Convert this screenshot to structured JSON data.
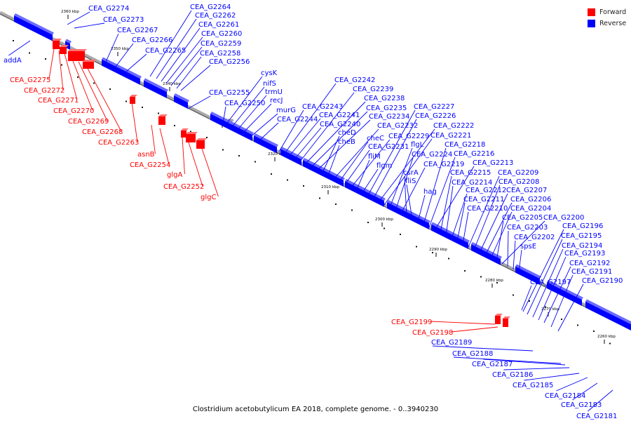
{
  "title": "Clostridium acetobutylicum EA 2018, complete genome. - 0..3940230",
  "legend": [
    {
      "label": "Forward",
      "color": "#ff0000"
    },
    {
      "label": "Reverse",
      "color": "#0000ff"
    }
  ],
  "colors": {
    "forward": "#ff0000",
    "reverse": "#0000ff",
    "backbone": "#a9a9a9"
  },
  "ticks": [
    "2360 kbp",
    "2350 kbp",
    "2340 kbp",
    "2330 kbp",
    "2320 kbp",
    "2310 kbp",
    "2300 kbp",
    "2290 kbp",
    "2280 kbp",
    "2270 kbp",
    "2260 kbp"
  ],
  "genes": [
    {
      "label": "CEA_G2274",
      "strand": "reverse"
    },
    {
      "label": "CEA_G2273",
      "strand": "reverse"
    },
    {
      "label": "CEA_G2267",
      "strand": "reverse"
    },
    {
      "label": "CEA_G2266",
      "strand": "reverse"
    },
    {
      "label": "CEA_G2265",
      "strand": "reverse"
    },
    {
      "label": "CEA_G2264",
      "strand": "reverse"
    },
    {
      "label": "CEA_G2262",
      "strand": "reverse"
    },
    {
      "label": "CEA_G2261",
      "strand": "reverse"
    },
    {
      "label": "CEA_G2260",
      "strand": "reverse"
    },
    {
      "label": "CEA_G2259",
      "strand": "reverse"
    },
    {
      "label": "CEA_G2258",
      "strand": "reverse"
    },
    {
      "label": "CEA_G2256",
      "strand": "reverse"
    },
    {
      "label": "addA",
      "strand": "reverse"
    },
    {
      "label": "CEA_G2275",
      "strand": "forward"
    },
    {
      "label": "CEA_G2272",
      "strand": "forward"
    },
    {
      "label": "CEA_G2271",
      "strand": "forward"
    },
    {
      "label": "CEA_G2270",
      "strand": "forward"
    },
    {
      "label": "CEA_G2269",
      "strand": "forward"
    },
    {
      "label": "CEA_G2268",
      "strand": "forward"
    },
    {
      "label": "CEA_G2263",
      "strand": "forward"
    },
    {
      "label": "asnB",
      "strand": "forward"
    },
    {
      "label": "CEA_G2254",
      "strand": "forward"
    },
    {
      "label": "glgA",
      "strand": "forward"
    },
    {
      "label": "CEA_G2252",
      "strand": "forward"
    },
    {
      "label": "glgC",
      "strand": "forward"
    },
    {
      "label": "CEA_G2255",
      "strand": "reverse"
    },
    {
      "label": "CEA_G2250",
      "strand": "reverse"
    },
    {
      "label": "cysK",
      "strand": "reverse"
    },
    {
      "label": "nifS",
      "strand": "reverse"
    },
    {
      "label": "trmU",
      "strand": "reverse"
    },
    {
      "label": "recJ",
      "strand": "reverse"
    },
    {
      "label": "murG",
      "strand": "reverse"
    },
    {
      "label": "CEA_G2244",
      "strand": "reverse"
    },
    {
      "label": "CEA_G2243",
      "strand": "reverse"
    },
    {
      "label": "CEA_G2242",
      "strand": "reverse"
    },
    {
      "label": "CEA_G2241",
      "strand": "reverse"
    },
    {
      "label": "CEA_G2240",
      "strand": "reverse"
    },
    {
      "label": "CEA_G2239",
      "strand": "reverse"
    },
    {
      "label": "CEA_G2238",
      "strand": "reverse"
    },
    {
      "label": "CEA_G2235",
      "strand": "reverse"
    },
    {
      "label": "CEA_G2234",
      "strand": "reverse"
    },
    {
      "label": "cheD",
      "strand": "reverse"
    },
    {
      "label": "cheB",
      "strand": "reverse"
    },
    {
      "label": "CEA_G2232",
      "strand": "reverse"
    },
    {
      "label": "cheC",
      "strand": "reverse"
    },
    {
      "label": "CEA_G2231",
      "strand": "reverse"
    },
    {
      "label": "CEA_G2229",
      "strand": "reverse"
    },
    {
      "label": "fliM",
      "strand": "reverse"
    },
    {
      "label": "flgm",
      "strand": "reverse"
    },
    {
      "label": "CEA_G2227",
      "strand": "reverse"
    },
    {
      "label": "CEA_G2226",
      "strand": "reverse"
    },
    {
      "label": "CEA_G2222",
      "strand": "reverse"
    },
    {
      "label": "CEA_G2221",
      "strand": "reverse"
    },
    {
      "label": "flgL",
      "strand": "reverse"
    },
    {
      "label": "CEA_G2224",
      "strand": "reverse"
    },
    {
      "label": "CEA_G2219",
      "strand": "reverse"
    },
    {
      "label": "csrA",
      "strand": "reverse"
    },
    {
      "label": "fliS",
      "strand": "reverse"
    },
    {
      "label": "hag",
      "strand": "reverse"
    },
    {
      "label": "CEA_G2218",
      "strand": "reverse"
    },
    {
      "label": "CEA_G2216",
      "strand": "reverse"
    },
    {
      "label": "CEA_G2213",
      "strand": "reverse"
    },
    {
      "label": "CEA_G2215",
      "strand": "reverse"
    },
    {
      "label": "CEA_G2214",
      "strand": "reverse"
    },
    {
      "label": "CEA_G2212",
      "strand": "reverse"
    },
    {
      "label": "CEA_G2211",
      "strand": "reverse"
    },
    {
      "label": "CEA_G2210",
      "strand": "reverse"
    },
    {
      "label": "CEA_G2209",
      "strand": "reverse"
    },
    {
      "label": "CEA_G2208",
      "strand": "reverse"
    },
    {
      "label": "CEA_G2207",
      "strand": "reverse"
    },
    {
      "label": "CEA_G2206",
      "strand": "reverse"
    },
    {
      "label": "CEA_G2204",
      "strand": "reverse"
    },
    {
      "label": "CEA_G2205",
      "strand": "reverse"
    },
    {
      "label": "CEA_G2200",
      "strand": "reverse"
    },
    {
      "label": "CEA_G2203",
      "strand": "reverse"
    },
    {
      "label": "CEA_G2202",
      "strand": "reverse"
    },
    {
      "label": "spsE",
      "strand": "reverse"
    },
    {
      "label": "CEA_G2196",
      "strand": "reverse"
    },
    {
      "label": "CEA_G2195",
      "strand": "reverse"
    },
    {
      "label": "CEA_G2194",
      "strand": "reverse"
    },
    {
      "label": "CEA_G2193",
      "strand": "reverse"
    },
    {
      "label": "CEA_G2192",
      "strand": "reverse"
    },
    {
      "label": "CEA_G2191",
      "strand": "reverse"
    },
    {
      "label": "CEA_G2197",
      "strand": "reverse"
    },
    {
      "label": "CEA_G2190",
      "strand": "reverse"
    },
    {
      "label": "CEA_G2199",
      "strand": "forward"
    },
    {
      "label": "CEA_G2198",
      "strand": "forward"
    },
    {
      "label": "CEA_G2189",
      "strand": "reverse"
    },
    {
      "label": "CEA_G2188",
      "strand": "reverse"
    },
    {
      "label": "CEA_G2187",
      "strand": "reverse"
    },
    {
      "label": "CEA_G2186",
      "strand": "reverse"
    },
    {
      "label": "CEA_G2185",
      "strand": "reverse"
    },
    {
      "label": "CEA_G2184",
      "strand": "reverse"
    },
    {
      "label": "CEA_G2183",
      "strand": "reverse"
    },
    {
      "label": "CEA_G2181",
      "strand": "reverse"
    }
  ]
}
